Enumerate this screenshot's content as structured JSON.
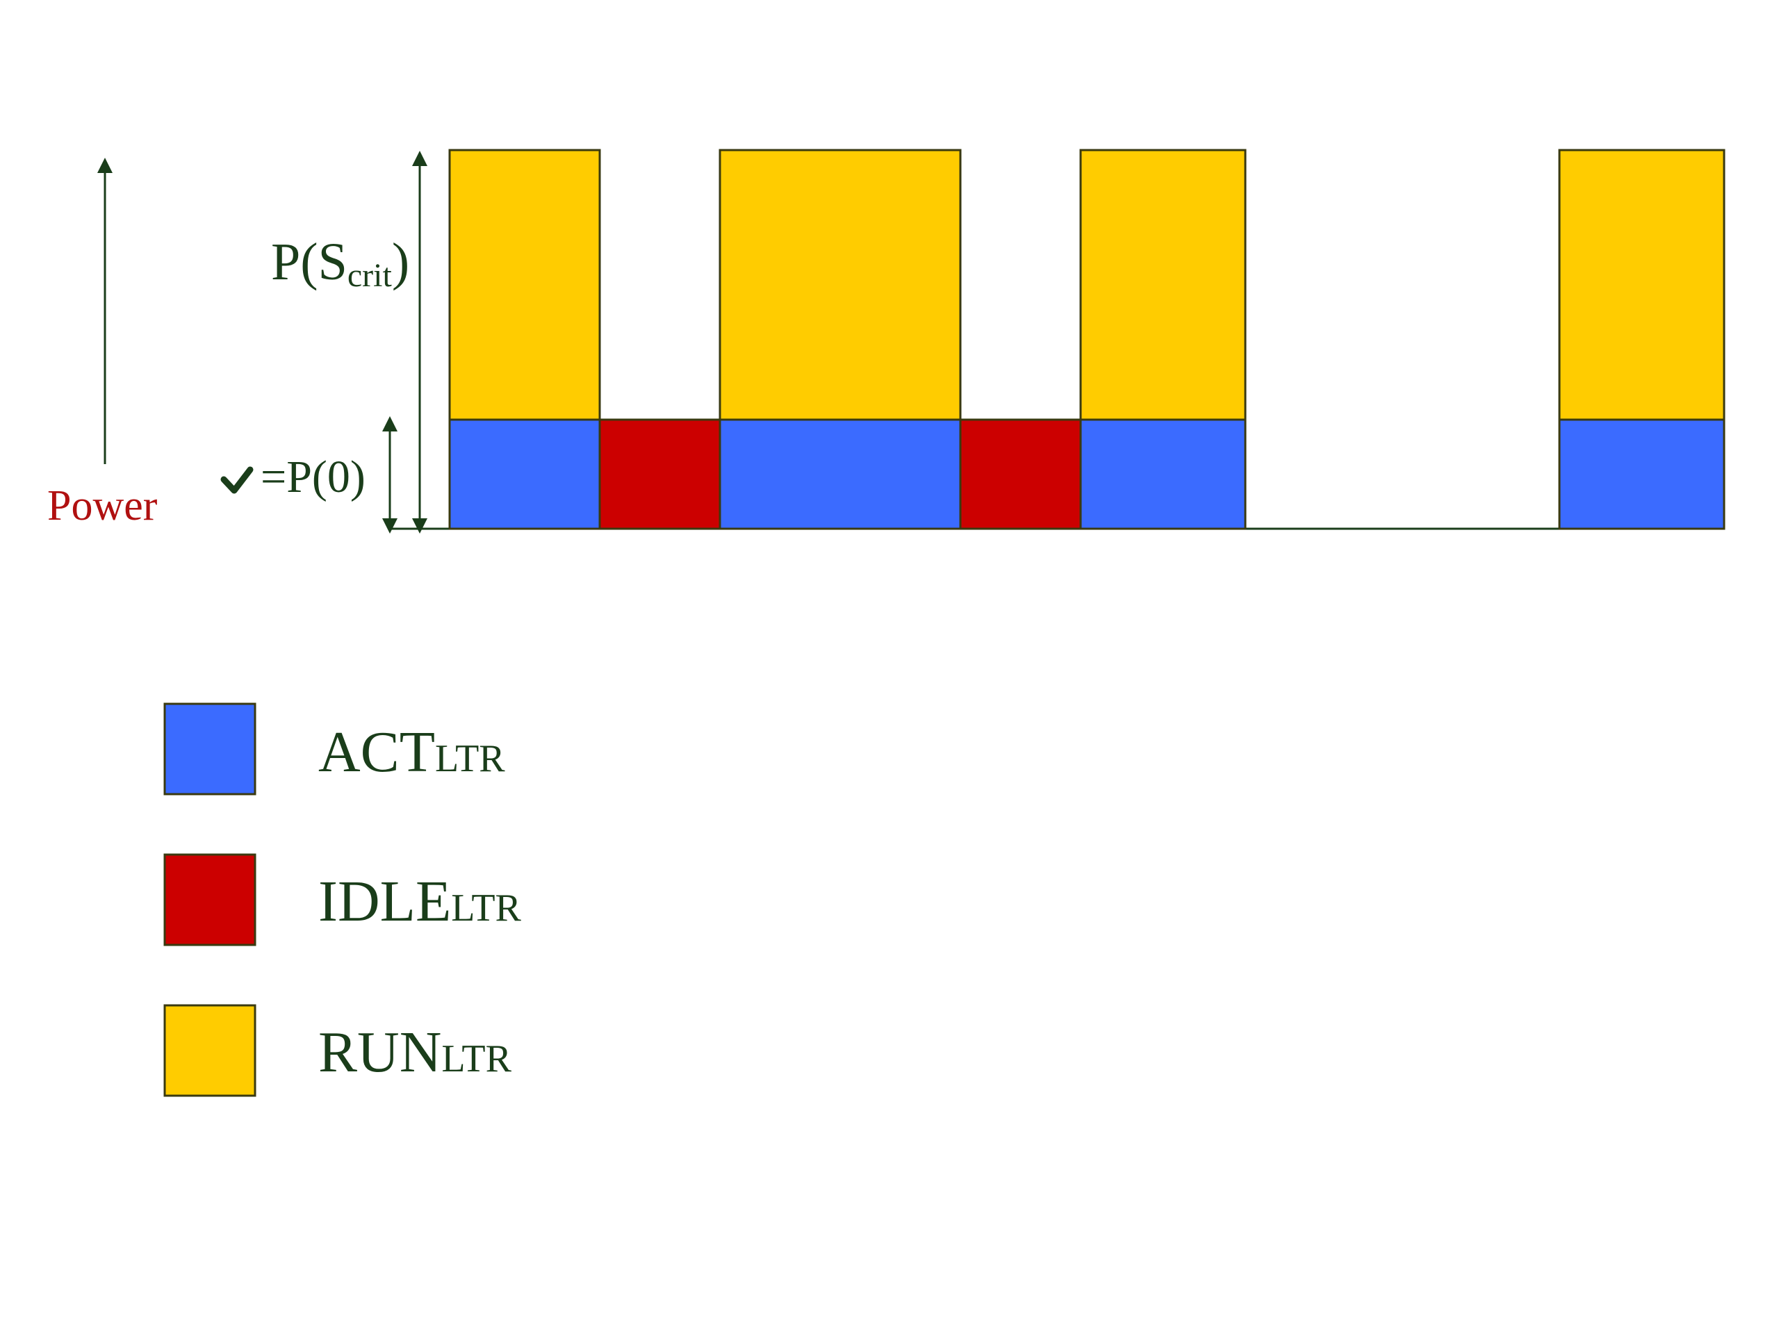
{
  "labels": {
    "power": "Power",
    "p_scrit_main": "P(S",
    "p_scrit_sub": "crit",
    "p_scrit_close": ")",
    "p_zero": "=P(0)"
  },
  "legend": [
    {
      "state": "act",
      "main": "ACT",
      "sub": "LTR",
      "color": "#3b6bff"
    },
    {
      "state": "idle",
      "main": "IDLE",
      "sub": "LTR",
      "color": "#cc0000"
    },
    {
      "state": "run",
      "main": "RUN",
      "sub": "LTR",
      "color": "#ffcc00"
    }
  ],
  "colors": {
    "axis": "#1a3d1a",
    "text": "#1a3d1a",
    "power_label": "#b01010",
    "border": "#3a3a10"
  }
}
